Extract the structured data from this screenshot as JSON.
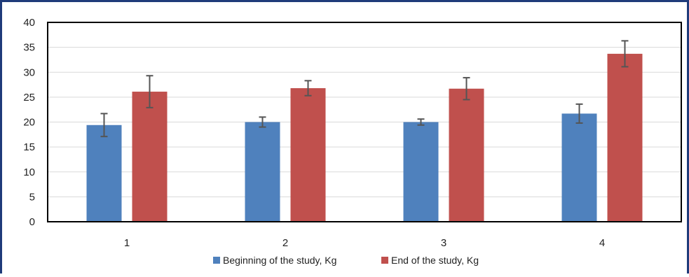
{
  "chart_data": {
    "type": "bar",
    "title": "",
    "xlabel": "",
    "ylabel": "",
    "categories": [
      "1",
      "2",
      "3",
      "4"
    ],
    "ylim": [
      0,
      40
    ],
    "yticks": [
      0,
      5,
      10,
      15,
      20,
      25,
      30,
      35,
      40
    ],
    "grid": true,
    "legend_position": "bottom",
    "series": [
      {
        "name": "Beginning of the study, Kg",
        "color": "#4f81bd",
        "values": [
          19.4,
          20.0,
          20.0,
          21.7
        ],
        "error": [
          2.3,
          1.0,
          0.6,
          1.9
        ]
      },
      {
        "name": "End of the study, Kg",
        "color": "#c0504d",
        "values": [
          26.1,
          26.8,
          26.7,
          33.7
        ],
        "error": [
          3.2,
          1.5,
          2.2,
          2.6
        ]
      }
    ]
  }
}
